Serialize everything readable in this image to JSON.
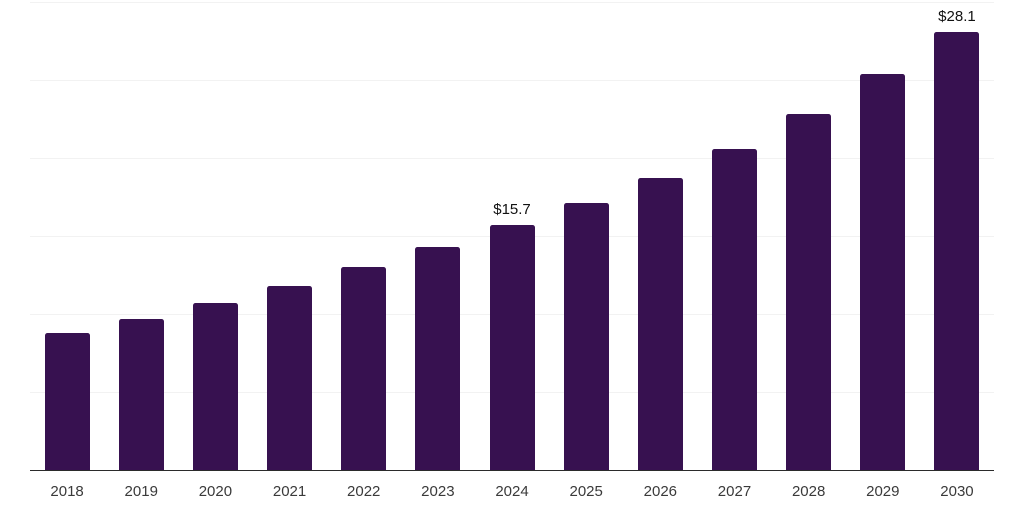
{
  "chart_data": {
    "type": "bar",
    "title": "",
    "xlabel": "",
    "ylabel": "",
    "categories": [
      "2018",
      "2019",
      "2020",
      "2021",
      "2022",
      "2023",
      "2024",
      "2025",
      "2026",
      "2027",
      "2028",
      "2029",
      "2030"
    ],
    "values": [
      8.8,
      9.7,
      10.7,
      11.8,
      13.0,
      14.3,
      15.7,
      17.1,
      18.7,
      20.6,
      22.8,
      25.4,
      28.1
    ],
    "value_labels": {
      "2024": "$15.7",
      "2030": "$28.1"
    },
    "ylim": [
      0,
      30
    ],
    "gridline_step": 5,
    "grid": true,
    "legend": false,
    "colors": {
      "bar": "#371150",
      "gridline": "#f2f2f2",
      "axis_line": "#2b2b2b",
      "tick_label": "#3a3a3a",
      "value_label": "#111111",
      "background": "#ffffff"
    }
  }
}
